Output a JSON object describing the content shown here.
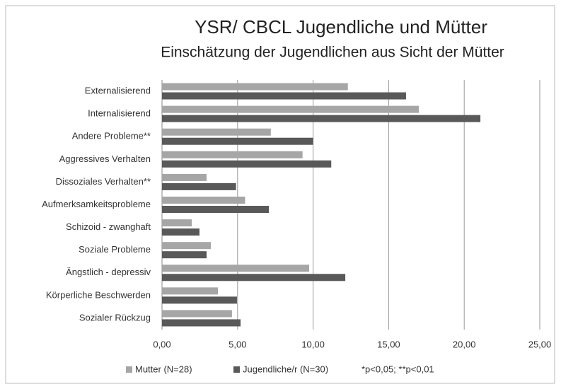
{
  "chart_data": {
    "type": "hbar",
    "title": "YSR/ CBCL  Jugendliche und Mütter",
    "subtitle": "Einschätzung der Jugendlichen aus Sicht der Mütter",
    "categories": [
      "Externalisierend",
      "Internalisierend",
      "Andere Probleme**",
      "Aggressives Verhalten",
      "Dissoziales Verhalten**",
      "Aufmerksamkeitsprobleme",
      "Schizoid - zwanghaft",
      "Soziale Probleme",
      "Ängstlich - depressiv",
      "Körperliche Beschwerden",
      "Sozialer Rückzug"
    ],
    "series": [
      {
        "name": "Mutter (N=28)",
        "color": "#a6a6a6",
        "values": [
          12.3,
          17.0,
          7.2,
          9.3,
          2.95,
          5.5,
          1.97,
          3.23,
          9.74,
          3.7,
          4.63
        ]
      },
      {
        "name": "Jugendliche/r (N=30)",
        "color": "#595959",
        "values": [
          16.15,
          21.07,
          10.0,
          11.2,
          4.9,
          7.07,
          2.48,
          2.95,
          12.13,
          4.96,
          5.2
        ]
      }
    ],
    "annotation": "*p<0,05; **p<0,01",
    "xlim": [
      0,
      25
    ],
    "xticks": [
      {
        "value": 0,
        "label": "0,00"
      },
      {
        "value": 5,
        "label": "5,00"
      },
      {
        "value": 10,
        "label": "10,00"
      },
      {
        "value": 15,
        "label": "15,00"
      },
      {
        "value": 20,
        "label": "20,00"
      },
      {
        "value": 25,
        "label": "25,00"
      }
    ],
    "grid": true
  }
}
